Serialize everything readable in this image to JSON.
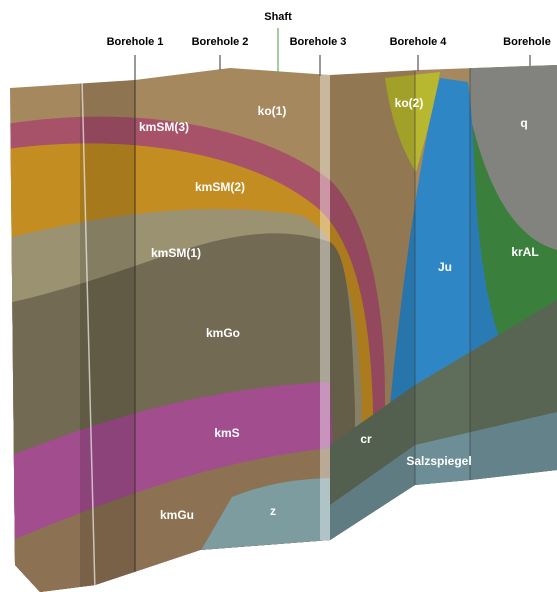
{
  "shaft": "Shaft",
  "boreholes": [
    "Borehole 1",
    "Borehole 2",
    "Borehole 3",
    "Borehole 4",
    "Borehole"
  ],
  "units": [
    "ko(1)",
    "kmSM(3)",
    "kmSM(2)",
    "kmSM(1)",
    "kmGo",
    "kmS",
    "kmGu",
    "z",
    "cr",
    "ko(2)",
    "Ju",
    "q",
    "krAL",
    "Salzspiegel"
  ]
}
